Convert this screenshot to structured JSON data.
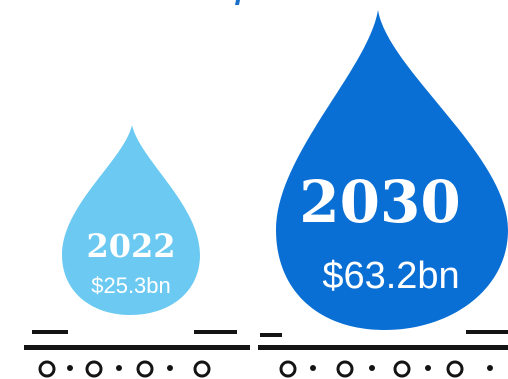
{
  "colors": {
    "drop_small": "#6ccaf2",
    "drop_large": "#0a6fd4",
    "track": "#141414",
    "title_fragment": "#1a6fc9"
  },
  "drops": [
    {
      "year": "2022",
      "amount": "$25.3bn",
      "value_bn": 25.3
    },
    {
      "year": "2030",
      "amount": "$63.2bn",
      "value_bn": 63.2
    }
  ]
}
